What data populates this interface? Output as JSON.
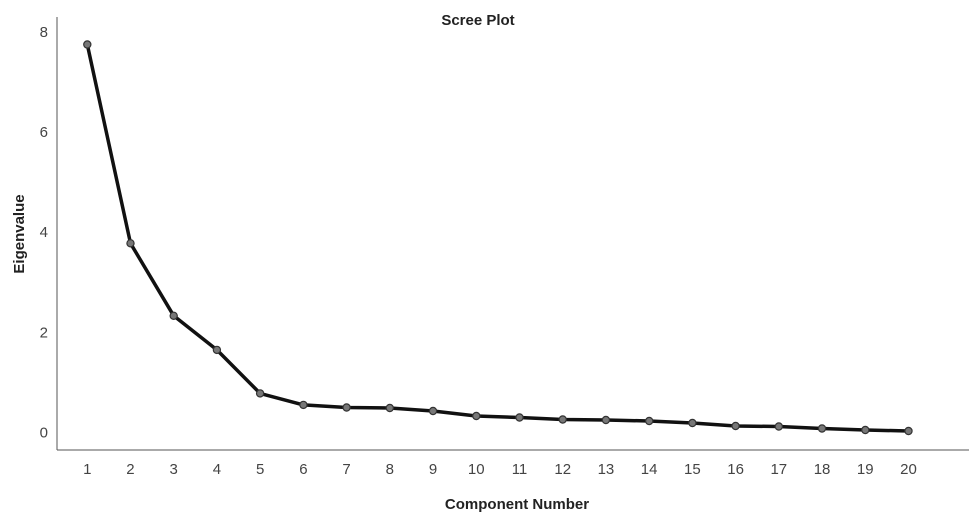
{
  "chart_data": {
    "type": "line",
    "title": "Scree Plot",
    "xlabel": "Component Number",
    "ylabel": "Eigenvalue",
    "x": [
      1,
      2,
      3,
      4,
      5,
      6,
      7,
      8,
      9,
      10,
      11,
      12,
      13,
      14,
      15,
      16,
      17,
      18,
      19,
      20
    ],
    "x_tick_labels": [
      "1",
      "2",
      "3",
      "4",
      "5",
      "6",
      "7",
      "8",
      "9",
      "10",
      "11",
      "12",
      "13",
      "14",
      "15",
      "16",
      "17",
      "18",
      "19",
      "20"
    ],
    "y_ticks": [
      0,
      2,
      4,
      6,
      8
    ],
    "y_tick_labels": [
      "0",
      "2",
      "4",
      "6",
      "8"
    ],
    "ylim": [
      -0.35,
      8.3
    ],
    "xlim": [
      0.3,
      21.4
    ],
    "grid": false,
    "series": [
      {
        "values": [
          7.75,
          3.78,
          2.33,
          1.65,
          0.78,
          0.55,
          0.5,
          0.49,
          0.43,
          0.33,
          0.3,
          0.26,
          0.25,
          0.23,
          0.19,
          0.13,
          0.12,
          0.08,
          0.05,
          0.03
        ],
        "color": "#111111",
        "marker_color": "#777777"
      }
    ]
  }
}
